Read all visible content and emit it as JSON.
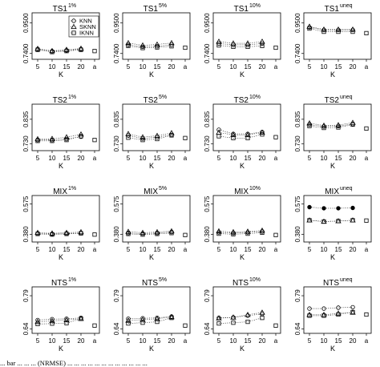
{
  "caption": "... bar ... ... ... (NRMSE) ... ... ... ... ... ... ... ... ... ... ... ...",
  "chart_data": {
    "type": "scatter",
    "layout": "4x4 small multiples",
    "legend": {
      "location": "top-left panel, top-right",
      "entries": [
        "KNN",
        "SKNN",
        "IKNN"
      ],
      "markers": [
        "circle",
        "triangle",
        "square"
      ]
    },
    "x_axis": {
      "label": "K",
      "ticks": [
        "5",
        "10",
        "15",
        "20",
        "a"
      ]
    },
    "panels": [
      {
        "title": "TS1",
        "sup": "1%",
        "ylim": [
          0.7,
          1.02
        ],
        "yticks": [
          "0.7400",
          "0.9500"
        ],
        "ytick_values": [
          0.74,
          0.95
        ],
        "knn": [
          0.77,
          0.755,
          0.762,
          0.77
        ],
        "sknn": [
          0.773,
          0.758,
          0.766,
          0.774
        ],
        "iknn": [
          0.765,
          0.75,
          0.757,
          0.765
        ],
        "iknn_a": 0.757
      },
      {
        "title": "TS1",
        "sup": "5%",
        "ylim": [
          0.7,
          1.02
        ],
        "yticks": [
          "0.7400",
          "0.9500"
        ],
        "ytick_values": [
          0.74,
          0.95
        ],
        "knn": [
          0.8,
          0.786,
          0.79,
          0.8
        ],
        "sknn": [
          0.812,
          0.796,
          0.802,
          0.812
        ],
        "iknn": [
          0.792,
          0.778,
          0.782,
          0.79
        ],
        "iknn_a": 0.78
      },
      {
        "title": "TS1",
        "sup": "10%",
        "ylim": [
          0.7,
          1.02
        ],
        "yticks": [
          "0.7400",
          "0.9500"
        ],
        "ytick_values": [
          0.74,
          0.95
        ],
        "knn": [
          0.808,
          0.8,
          0.8,
          0.808
        ],
        "sknn": [
          0.822,
          0.81,
          0.81,
          0.822
        ],
        "iknn": [
          0.796,
          0.786,
          0.786,
          0.792
        ],
        "iknn_a": 0.78
      },
      {
        "title": "TS1",
        "sup": "uneq",
        "ylim": [
          0.7,
          1.02
        ],
        "yticks": [
          "0.7400",
          "0.9500"
        ],
        "ytick_values": [
          0.74,
          0.95
        ],
        "knn": [
          0.92,
          0.902,
          0.902,
          0.902
        ],
        "sknn": [
          0.925,
          0.905,
          0.905,
          0.905
        ],
        "iknn": [
          0.912,
          0.89,
          0.89,
          0.89
        ],
        "iknn_a": 0.88
      },
      {
        "title": "TS2",
        "sup": "1%",
        "ylim": [
          0.7,
          0.9
        ],
        "yticks": [
          "0.730",
          "0.835"
        ],
        "ytick_values": [
          0.73,
          0.835
        ],
        "knn": [
          0.746,
          0.746,
          0.75,
          0.76
        ],
        "sknn": [
          0.75,
          0.751,
          0.758,
          0.77
        ],
        "iknn": [
          0.742,
          0.742,
          0.746,
          0.762
        ],
        "iknn_a": 0.746
      },
      {
        "title": "TS2",
        "sup": "5%",
        "ylim": [
          0.7,
          0.9
        ],
        "yticks": [
          "0.730",
          "0.835"
        ],
        "ytick_values": [
          0.73,
          0.835
        ],
        "knn": [
          0.765,
          0.752,
          0.758,
          0.768
        ],
        "sknn": [
          0.772,
          0.758,
          0.764,
          0.776
        ],
        "iknn": [
          0.756,
          0.746,
          0.75,
          0.766
        ],
        "iknn_a": 0.754
      },
      {
        "title": "TS2",
        "sup": "10%",
        "ylim": [
          0.7,
          0.9
        ],
        "yticks": [
          "0.730",
          "0.835"
        ],
        "ytick_values": [
          0.73,
          0.835
        ],
        "knn": [
          0.79,
          0.772,
          0.772,
          0.78
        ],
        "sknn": [
          0.778,
          0.768,
          0.768,
          0.778
        ],
        "iknn": [
          0.762,
          0.754,
          0.754,
          0.77
        ],
        "iknn_a": 0.758
      },
      {
        "title": "TS2",
        "sup": "uneq",
        "ylim": [
          0.7,
          0.9
        ],
        "yticks": [
          "0.730",
          "0.835"
        ],
        "ytick_values": [
          0.73,
          0.835
        ],
        "knn": [
          0.812,
          0.804,
          0.806,
          0.814
        ],
        "sknn": [
          0.818,
          0.808,
          0.81,
          0.82
        ],
        "iknn": [
          0.806,
          0.798,
          0.8,
          0.812
        ],
        "iknn_a": 0.795
      },
      {
        "title": "MIX",
        "sup": "1%",
        "ylim": [
          0.33,
          0.63
        ],
        "yticks": [
          "0.380",
          "0.575"
        ],
        "ytick_values": [
          0.38,
          0.575
        ],
        "knn": [
          0.385,
          0.382,
          0.385,
          0.388
        ],
        "sknn": [
          0.39,
          0.386,
          0.39,
          0.394
        ],
        "iknn": [
          0.382,
          0.378,
          0.382,
          0.386
        ],
        "iknn_a": 0.378
      },
      {
        "title": "MIX",
        "sup": "5%",
        "ylim": [
          0.33,
          0.63
        ],
        "yticks": [
          "0.380",
          "0.575"
        ],
        "ytick_values": [
          0.38,
          0.575
        ],
        "knn": [
          0.388,
          0.384,
          0.388,
          0.394
        ],
        "sknn": [
          0.396,
          0.39,
          0.394,
          0.4
        ],
        "iknn": [
          0.382,
          0.378,
          0.382,
          0.388
        ],
        "iknn_a": 0.375
      },
      {
        "title": "MIX",
        "sup": "10%",
        "ylim": [
          0.33,
          0.63
        ],
        "yticks": [
          "0.380",
          "0.575"
        ],
        "ytick_values": [
          0.38,
          0.575
        ],
        "knn": [
          0.392,
          0.388,
          0.392,
          0.398
        ],
        "sknn": [
          0.4,
          0.394,
          0.398,
          0.404
        ],
        "iknn": [
          0.384,
          0.38,
          0.384,
          0.39
        ],
        "iknn_a": 0.375
      },
      {
        "title": "MIX",
        "sup": "uneq",
        "ylim": [
          0.33,
          0.63
        ],
        "yticks": [
          "0.380",
          "0.575"
        ],
        "ytick_values": [
          0.38,
          0.575
        ],
        "knn": [
          0.555,
          0.548,
          0.548,
          0.55
        ],
        "sknn": [
          0.47,
          0.462,
          0.465,
          0.47
        ],
        "iknn": [
          0.47,
          0.462,
          0.465,
          0.47
        ],
        "iknn_a": 0.468
      },
      {
        "title": "NTS",
        "sup": "1%",
        "ylim": [
          0.62,
          0.83
        ],
        "yticks": [
          "0.64",
          "0.79"
        ],
        "ytick_values": [
          0.64,
          0.79
        ],
        "knn": [
          0.68,
          0.684,
          0.686,
          0.69
        ],
        "sknn": [
          0.672,
          0.676,
          0.68,
          0.686
        ],
        "iknn": [
          0.662,
          0.664,
          0.666,
          0.686
        ],
        "iknn_a": 0.655
      },
      {
        "title": "NTS",
        "sup": "5%",
        "ylim": [
          0.62,
          0.83
        ],
        "yticks": [
          "0.64",
          "0.79"
        ],
        "ytick_values": [
          0.64,
          0.79
        ],
        "knn": [
          0.686,
          0.688,
          0.69,
          0.696
        ],
        "sknn": [
          0.678,
          0.682,
          0.686,
          0.694
        ],
        "iknn": [
          0.665,
          0.668,
          0.672,
          0.69
        ],
        "iknn_a": 0.655
      },
      {
        "title": "NTS",
        "sup": "10%",
        "ylim": [
          0.62,
          0.83
        ],
        "yticks": [
          "0.64",
          "0.79"
        ],
        "ytick_values": [
          0.64,
          0.79
        ],
        "knn": [
          0.69,
          0.692,
          0.7,
          0.708
        ],
        "sknn": [
          0.688,
          0.692,
          0.704,
          0.714
        ],
        "iknn": [
          0.665,
          0.668,
          0.672,
          0.69
        ],
        "iknn_a": 0.655
      },
      {
        "title": "NTS",
        "sup": "uneq",
        "ylim": [
          0.62,
          0.83
        ],
        "yticks": [
          "0.64",
          "0.79"
        ],
        "ytick_values": [
          0.64,
          0.79
        ],
        "knn": [
          0.732,
          0.732,
          0.736,
          0.738
        ],
        "sknn": [
          0.704,
          0.704,
          0.71,
          0.714
        ],
        "iknn": [
          0.7,
          0.7,
          0.705,
          0.716
        ],
        "iknn_a": 0.705
      }
    ]
  }
}
